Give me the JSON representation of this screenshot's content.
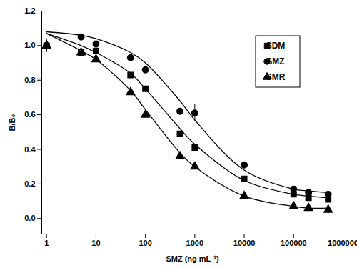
{
  "chart_data": {
    "type": "scatter",
    "x_label": "SMZ (ng mL⁻¹)",
    "y_label": "B/B₀",
    "log": "x",
    "grid": false,
    "legend": "top-right",
    "line_style": "solid",
    "x": [
      1,
      5,
      10,
      50,
      100,
      500,
      1000,
      10000,
      100000,
      200000,
      500000
    ],
    "xlim": [
      0.8,
      1000000
    ],
    "xticks": [
      1,
      10,
      100,
      1000,
      10000,
      100000,
      1000000
    ],
    "ylim": [
      -0.09,
      1.2
    ],
    "yticks": [
      {
        "value": 0,
        "label": "0.0"
      },
      0.2,
      0.4,
      0.6,
      0.8,
      {
        "value": 1,
        "label": "1.0"
      },
      1.2
    ],
    "series": [
      {
        "name": "SDM",
        "marker": "square",
        "color": "#000000",
        "values": [
          1.0,
          0.96,
          0.97,
          0.83,
          0.75,
          0.49,
          0.41,
          0.23,
          0.14,
          0.12,
          0.11
        ],
        "errors": [
          0.03,
          0.02,
          0.02,
          0.01,
          0.01,
          0.01,
          0.01,
          0.01,
          0.01,
          0.01,
          0.01
        ],
        "fit": [
          1.07,
          1.0,
          0.96,
          0.84,
          0.75,
          0.52,
          0.43,
          0.22,
          0.14,
          0.13,
          0.12
        ]
      },
      {
        "name": "SMZ",
        "marker": "circle",
        "color": "#000000",
        "values": [
          1.0,
          1.05,
          1.01,
          0.93,
          0.86,
          0.62,
          0.61,
          0.31,
          0.17,
          0.15,
          0.14
        ],
        "errors": [
          0.04,
          0.01,
          0.01,
          0.01,
          0.01,
          0.01,
          0.05,
          0.01,
          0.01,
          0.01,
          0.01
        ],
        "fit": [
          1.08,
          1.06,
          1.04,
          0.96,
          0.9,
          0.68,
          0.57,
          0.28,
          0.17,
          0.16,
          0.15
        ]
      },
      {
        "name": "SMR",
        "marker": "triangle",
        "color": "#000000",
        "values": [
          1.0,
          0.96,
          0.92,
          0.73,
          0.6,
          0.36,
          0.3,
          0.13,
          0.07,
          0.06,
          0.05
        ],
        "errors": [
          0.03,
          0.01,
          0.02,
          0.01,
          0.01,
          0.01,
          0.01,
          0.01,
          0.01,
          0.01,
          0.03
        ],
        "fit": [
          1.07,
          0.97,
          0.92,
          0.74,
          0.63,
          0.38,
          0.3,
          0.13,
          0.07,
          0.06,
          0.06
        ]
      }
    ]
  }
}
